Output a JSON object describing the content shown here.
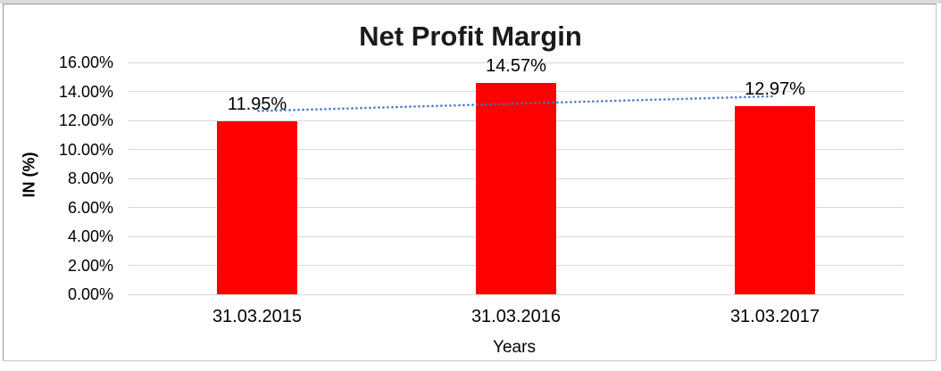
{
  "chart_data": {
    "type": "bar",
    "title": "Net Profit Margin",
    "xlabel": "Years",
    "ylabel": "IN (%)",
    "categories": [
      "31.03.2015",
      "31.03.2016",
      "31.03.2017"
    ],
    "values": [
      11.95,
      14.57,
      12.97
    ],
    "data_labels": [
      "11.95%",
      "14.57%",
      "12.97%"
    ],
    "ylim": [
      0,
      16
    ],
    "ytick_step": 2,
    "ytick_labels": [
      "0.00%",
      "2.00%",
      "4.00%",
      "6.00%",
      "8.00%",
      "10.00%",
      "12.00%",
      "14.00%",
      "16.00%"
    ],
    "grid": true,
    "legend": "none",
    "bar_color": "#FF0000",
    "gridline_color": "#D9D9D9",
    "trendline": {
      "type": "linear",
      "style": "dotted",
      "color": "#4472C4"
    }
  },
  "colors": {
    "background": "#FFFFFF",
    "frame_border_dark": "#969696",
    "frame_border_light": "#C9C9C9",
    "title_text": "#1B1B1B",
    "axis_text": "#000000"
  }
}
